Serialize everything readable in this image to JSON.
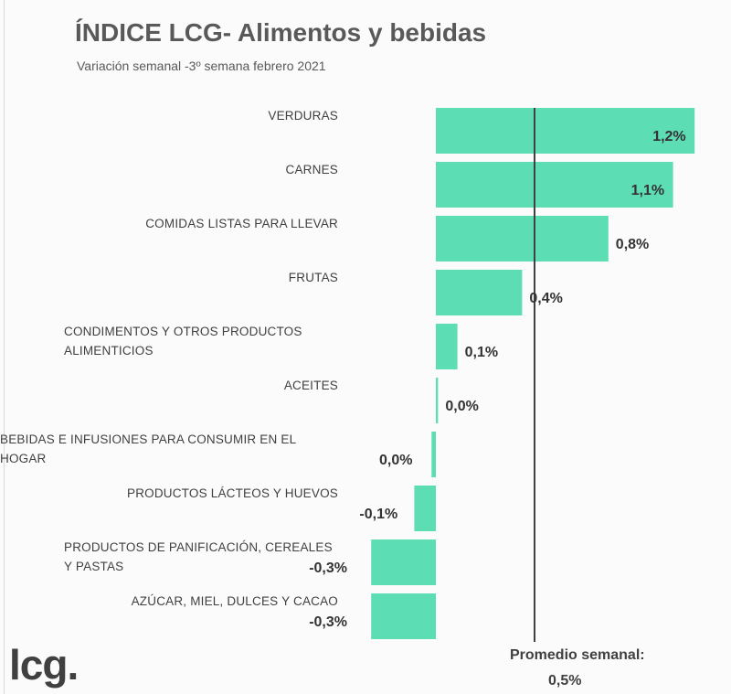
{
  "header": {
    "title": "ÍNDICE LCG- Alimentos y bebidas",
    "subtitle": "Variación semanal -3º semana febrero 2021"
  },
  "footer": {
    "logo_text": "lcg.",
    "average_label": "Promedio semanal:",
    "average_value": "0,5%"
  },
  "colors": {
    "bar": "#5dddb4",
    "average_line": "#404040"
  },
  "chart_data": {
    "type": "bar",
    "orientation": "horizontal",
    "categories": [
      "VERDURAS",
      "CARNES",
      "COMIDAS LISTAS PARA LLEVAR",
      "FRUTAS",
      "CONDIMENTOS Y OTROS PRODUCTOS ALIMENTICIOS",
      "ACEITES",
      "BEBIDAS E INFUSIONES PARA CONSUMIR EN EL HOGAR",
      "PRODUCTOS LÁCTEOS Y HUEVOS",
      "PRODUCTOS DE PANIFICACIÓN, CEREALES Y PASTAS",
      "AZÚCAR, MIEL, DULCES Y CACAO"
    ],
    "values": [
      1.2,
      1.1,
      0.8,
      0.4,
      0.1,
      0.01,
      -0.02,
      -0.1,
      -0.3,
      -0.3
    ],
    "value_labels": [
      "1,2%",
      "1,1%",
      "0,8%",
      "0,4%",
      "0,1%",
      "0,0%",
      "0,0%",
      "-0,1%",
      "-0,3%",
      "-0,3%"
    ],
    "average": 0.5,
    "unit": "%"
  }
}
